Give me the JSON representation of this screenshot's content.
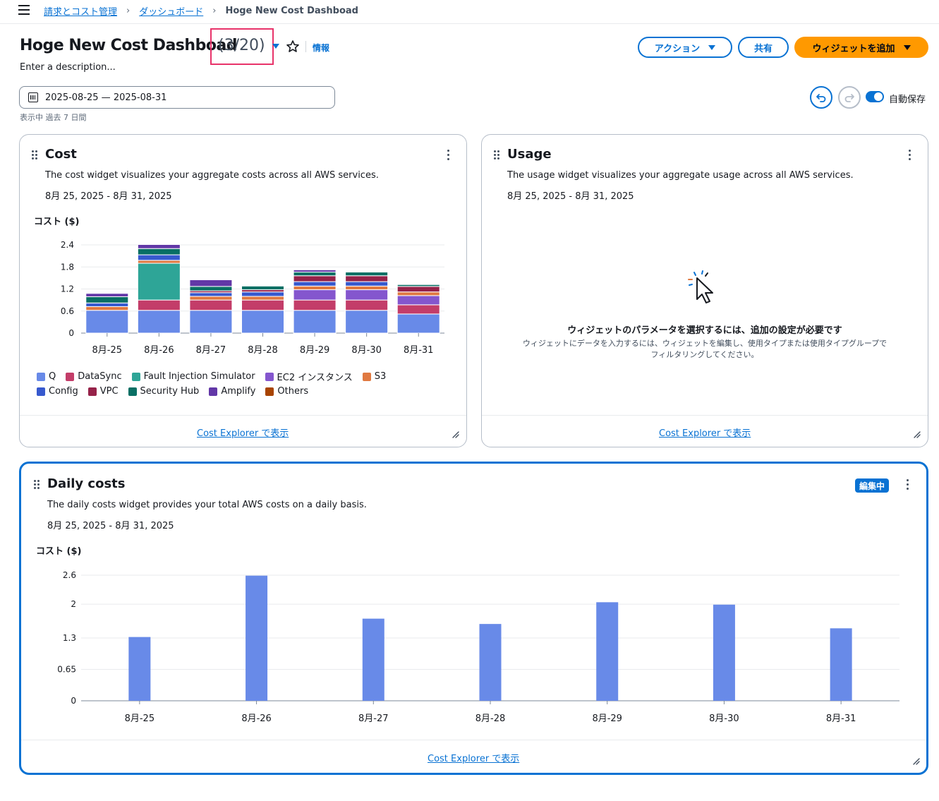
{
  "breadcrumb": {
    "items": [
      "請求とコスト管理",
      "ダッシュボード"
    ],
    "current": "Hoge New Cost Dashboad"
  },
  "header": {
    "title": "Hoge New Cost Dashboad",
    "count": "(3/20)",
    "info": "情報",
    "description": "Enter a description...",
    "actions_label": "アクション",
    "share_label": "共有",
    "add_widget_label": "ウィジェットを追加"
  },
  "date_range": {
    "value": "2025-08-25 — 2025-08-31",
    "hint": "表示中 過去 7 日間"
  },
  "autosave": {
    "label": "自動保存",
    "enabled": true
  },
  "colors": {
    "accent": "#0972d3",
    "primary_button": "#ff9900",
    "highlight_box": "#e8336a"
  },
  "widgets": {
    "cost": {
      "title": "Cost",
      "description": "The cost widget visualizes your aggregate costs across all AWS services.",
      "date": "8月 25, 2025 - 8月 31, 2025",
      "ylabel": "コスト ($)",
      "footer_link": "Cost Explorer で表示"
    },
    "usage": {
      "title": "Usage",
      "description": "The usage widget visualizes your aggregate usage across all AWS services.",
      "date": "8月 25, 2025 - 8月 31, 2025",
      "empty_title": "ウィジェットのパラメータを選択するには、追加の設定が必要です",
      "empty_desc": "ウィジェットにデータを入力するには、ウィジェットを編集し、使用タイプまたは使用タイプグループでフィルタリングしてください。",
      "footer_link": "Cost Explorer で表示"
    },
    "daily": {
      "title": "Daily costs",
      "badge": "編集中",
      "description": "The daily costs widget provides your total AWS costs on a daily basis.",
      "date": "8月 25, 2025 - 8月 31, 2025",
      "ylabel": "コスト ($)",
      "footer_link": "Cost Explorer で表示"
    }
  },
  "chart_data": [
    {
      "type": "bar",
      "stacked": true,
      "ylabel": "コスト ($)",
      "ylim": [
        0,
        2.4
      ],
      "yticks": [
        "0",
        "0.6",
        "1.2",
        "1.8",
        "2.4"
      ],
      "categories": [
        "8月-25",
        "8月-26",
        "8月-27",
        "8月-28",
        "8月-29",
        "8月-30",
        "8月-31"
      ],
      "legend_position": "bottom",
      "series": [
        {
          "name": "Q",
          "color": "#688ae8",
          "values": [
            0.62,
            0.62,
            0.62,
            0.62,
            0.62,
            0.62,
            0.52
          ]
        },
        {
          "name": "DataSync",
          "color": "#c33d69",
          "values": [
            0.0,
            0.28,
            0.28,
            0.28,
            0.28,
            0.28,
            0.25
          ]
        },
        {
          "name": "Fault Injection Simulator",
          "color": "#2ea597",
          "values": [
            0.0,
            1.0,
            0.0,
            0.0,
            0.0,
            0.0,
            0.0
          ]
        },
        {
          "name": "EC2 インスタンス",
          "color": "#8456ce",
          "values": [
            0.0,
            0.0,
            0.0,
            0.0,
            0.28,
            0.28,
            0.25
          ]
        },
        {
          "name": "S3",
          "color": "#e07941",
          "values": [
            0.1,
            0.08,
            0.1,
            0.1,
            0.1,
            0.1,
            0.1
          ]
        },
        {
          "name": "Config",
          "color": "#3759ce",
          "values": [
            0.1,
            0.15,
            0.1,
            0.12,
            0.12,
            0.12,
            0.0
          ]
        },
        {
          "name": "VPC",
          "color": "#962249",
          "values": [
            0.0,
            0.0,
            0.05,
            0.06,
            0.16,
            0.16,
            0.15
          ]
        },
        {
          "name": "Security Hub",
          "color": "#096f64",
          "values": [
            0.17,
            0.17,
            0.12,
            0.1,
            0.1,
            0.1,
            0.05
          ]
        },
        {
          "name": "Amplify",
          "color": "#6237a7",
          "values": [
            0.09,
            0.11,
            0.18,
            0.0,
            0.06,
            0.0,
            0.0
          ]
        },
        {
          "name": "Others",
          "color": "#a84401",
          "values": [
            0.0,
            0.0,
            0.0,
            0.0,
            0.0,
            0.0,
            0.0
          ]
        }
      ]
    },
    {
      "type": "bar",
      "ylabel": "コスト ($)",
      "ylim": [
        0,
        2.6
      ],
      "yticks": [
        "0",
        "0.65",
        "1.3",
        "2",
        "2.6"
      ],
      "categories": [
        "8月-25",
        "8月-26",
        "8月-27",
        "8月-28",
        "8月-29",
        "8月-30",
        "8月-31"
      ],
      "values": [
        1.32,
        2.59,
        1.7,
        1.59,
        2.04,
        1.99,
        1.5
      ],
      "color": "#688ae8"
    }
  ]
}
